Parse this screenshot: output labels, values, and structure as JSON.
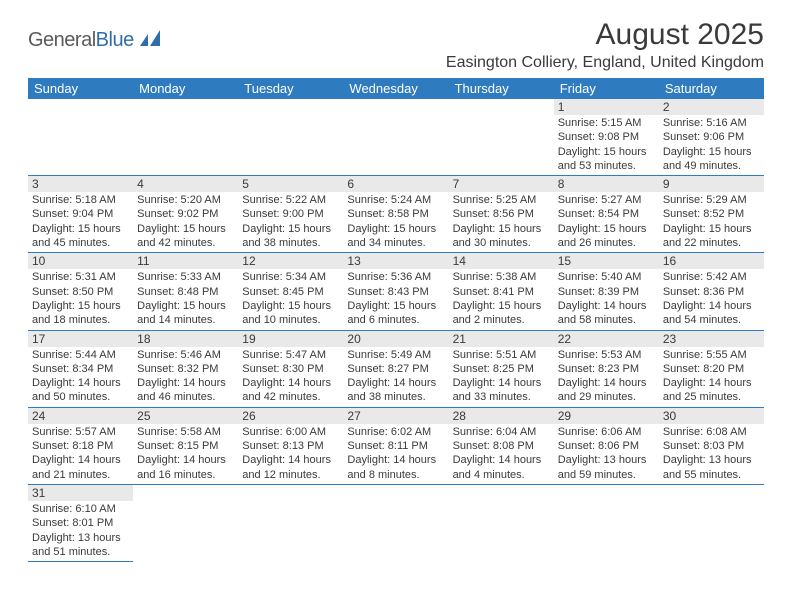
{
  "logo": {
    "part1": "General",
    "part2": "Blue"
  },
  "title": "August 2025",
  "location": "Easington Colliery, England, United Kingdom",
  "colors": {
    "header_bg": "#2f7bbf",
    "header_text": "#ffffff",
    "daynum_bg": "#e9e9e9",
    "border": "#2f7bbf",
    "text": "#3a3a3a",
    "logo_gray": "#5a5a5a",
    "logo_blue": "#2f6ea8",
    "background": "#ffffff"
  },
  "typography": {
    "title_fontsize": 30,
    "location_fontsize": 16,
    "header_fontsize": 13,
    "daynum_fontsize": 12,
    "body_fontsize": 11
  },
  "days_of_week": [
    "Sunday",
    "Monday",
    "Tuesday",
    "Wednesday",
    "Thursday",
    "Friday",
    "Saturday"
  ],
  "weeks": [
    [
      null,
      null,
      null,
      null,
      null,
      {
        "n": "1",
        "sr": "Sunrise: 5:15 AM",
        "ss": "Sunset: 9:08 PM",
        "dl": "Daylight: 15 hours and 53 minutes."
      },
      {
        "n": "2",
        "sr": "Sunrise: 5:16 AM",
        "ss": "Sunset: 9:06 PM",
        "dl": "Daylight: 15 hours and 49 minutes."
      }
    ],
    [
      {
        "n": "3",
        "sr": "Sunrise: 5:18 AM",
        "ss": "Sunset: 9:04 PM",
        "dl": "Daylight: 15 hours and 45 minutes."
      },
      {
        "n": "4",
        "sr": "Sunrise: 5:20 AM",
        "ss": "Sunset: 9:02 PM",
        "dl": "Daylight: 15 hours and 42 minutes."
      },
      {
        "n": "5",
        "sr": "Sunrise: 5:22 AM",
        "ss": "Sunset: 9:00 PM",
        "dl": "Daylight: 15 hours and 38 minutes."
      },
      {
        "n": "6",
        "sr": "Sunrise: 5:24 AM",
        "ss": "Sunset: 8:58 PM",
        "dl": "Daylight: 15 hours and 34 minutes."
      },
      {
        "n": "7",
        "sr": "Sunrise: 5:25 AM",
        "ss": "Sunset: 8:56 PM",
        "dl": "Daylight: 15 hours and 30 minutes."
      },
      {
        "n": "8",
        "sr": "Sunrise: 5:27 AM",
        "ss": "Sunset: 8:54 PM",
        "dl": "Daylight: 15 hours and 26 minutes."
      },
      {
        "n": "9",
        "sr": "Sunrise: 5:29 AM",
        "ss": "Sunset: 8:52 PM",
        "dl": "Daylight: 15 hours and 22 minutes."
      }
    ],
    [
      {
        "n": "10",
        "sr": "Sunrise: 5:31 AM",
        "ss": "Sunset: 8:50 PM",
        "dl": "Daylight: 15 hours and 18 minutes."
      },
      {
        "n": "11",
        "sr": "Sunrise: 5:33 AM",
        "ss": "Sunset: 8:48 PM",
        "dl": "Daylight: 15 hours and 14 minutes."
      },
      {
        "n": "12",
        "sr": "Sunrise: 5:34 AM",
        "ss": "Sunset: 8:45 PM",
        "dl": "Daylight: 15 hours and 10 minutes."
      },
      {
        "n": "13",
        "sr": "Sunrise: 5:36 AM",
        "ss": "Sunset: 8:43 PM",
        "dl": "Daylight: 15 hours and 6 minutes."
      },
      {
        "n": "14",
        "sr": "Sunrise: 5:38 AM",
        "ss": "Sunset: 8:41 PM",
        "dl": "Daylight: 15 hours and 2 minutes."
      },
      {
        "n": "15",
        "sr": "Sunrise: 5:40 AM",
        "ss": "Sunset: 8:39 PM",
        "dl": "Daylight: 14 hours and 58 minutes."
      },
      {
        "n": "16",
        "sr": "Sunrise: 5:42 AM",
        "ss": "Sunset: 8:36 PM",
        "dl": "Daylight: 14 hours and 54 minutes."
      }
    ],
    [
      {
        "n": "17",
        "sr": "Sunrise: 5:44 AM",
        "ss": "Sunset: 8:34 PM",
        "dl": "Daylight: 14 hours and 50 minutes."
      },
      {
        "n": "18",
        "sr": "Sunrise: 5:46 AM",
        "ss": "Sunset: 8:32 PM",
        "dl": "Daylight: 14 hours and 46 minutes."
      },
      {
        "n": "19",
        "sr": "Sunrise: 5:47 AM",
        "ss": "Sunset: 8:30 PM",
        "dl": "Daylight: 14 hours and 42 minutes."
      },
      {
        "n": "20",
        "sr": "Sunrise: 5:49 AM",
        "ss": "Sunset: 8:27 PM",
        "dl": "Daylight: 14 hours and 38 minutes."
      },
      {
        "n": "21",
        "sr": "Sunrise: 5:51 AM",
        "ss": "Sunset: 8:25 PM",
        "dl": "Daylight: 14 hours and 33 minutes."
      },
      {
        "n": "22",
        "sr": "Sunrise: 5:53 AM",
        "ss": "Sunset: 8:23 PM",
        "dl": "Daylight: 14 hours and 29 minutes."
      },
      {
        "n": "23",
        "sr": "Sunrise: 5:55 AM",
        "ss": "Sunset: 8:20 PM",
        "dl": "Daylight: 14 hours and 25 minutes."
      }
    ],
    [
      {
        "n": "24",
        "sr": "Sunrise: 5:57 AM",
        "ss": "Sunset: 8:18 PM",
        "dl": "Daylight: 14 hours and 21 minutes."
      },
      {
        "n": "25",
        "sr": "Sunrise: 5:58 AM",
        "ss": "Sunset: 8:15 PM",
        "dl": "Daylight: 14 hours and 16 minutes."
      },
      {
        "n": "26",
        "sr": "Sunrise: 6:00 AM",
        "ss": "Sunset: 8:13 PM",
        "dl": "Daylight: 14 hours and 12 minutes."
      },
      {
        "n": "27",
        "sr": "Sunrise: 6:02 AM",
        "ss": "Sunset: 8:11 PM",
        "dl": "Daylight: 14 hours and 8 minutes."
      },
      {
        "n": "28",
        "sr": "Sunrise: 6:04 AM",
        "ss": "Sunset: 8:08 PM",
        "dl": "Daylight: 14 hours and 4 minutes."
      },
      {
        "n": "29",
        "sr": "Sunrise: 6:06 AM",
        "ss": "Sunset: 8:06 PM",
        "dl": "Daylight: 13 hours and 59 minutes."
      },
      {
        "n": "30",
        "sr": "Sunrise: 6:08 AM",
        "ss": "Sunset: 8:03 PM",
        "dl": "Daylight: 13 hours and 55 minutes."
      }
    ],
    [
      {
        "n": "31",
        "sr": "Sunrise: 6:10 AM",
        "ss": "Sunset: 8:01 PM",
        "dl": "Daylight: 13 hours and 51 minutes."
      },
      null,
      null,
      null,
      null,
      null,
      null
    ]
  ]
}
